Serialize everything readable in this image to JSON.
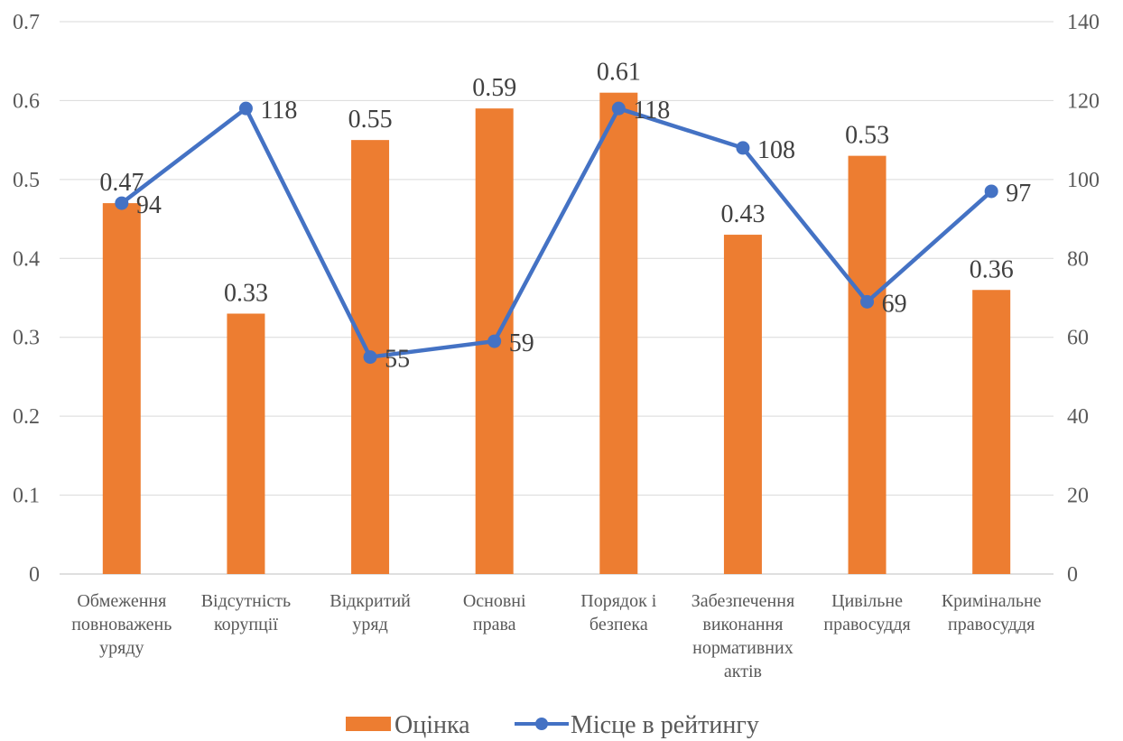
{
  "chart_data": {
    "type": "bar",
    "categories": [
      [
        "Обмеження",
        "повноважень",
        "уряду"
      ],
      [
        "Відсутність",
        "корупції"
      ],
      [
        "Відкритий",
        "уряд"
      ],
      [
        "Основні",
        "права"
      ],
      [
        "Порядок і",
        "безпека"
      ],
      [
        "Забезпечення",
        "виконання",
        "нормативних",
        "актів"
      ],
      [
        "Цивільне",
        "правосуддя"
      ],
      [
        "Кримінальне",
        "правосуддя"
      ]
    ],
    "series": [
      {
        "name": "Оцінка",
        "type": "bar",
        "axis": "left",
        "color": "#ED7D31",
        "values": [
          0.47,
          0.33,
          0.55,
          0.59,
          0.61,
          0.43,
          0.53,
          0.36
        ],
        "labels": [
          "0.47",
          "0.33",
          "0.55",
          "0.59",
          "0.61",
          "0.43",
          "0.53",
          "0.36"
        ]
      },
      {
        "name": "Місце в рейтингу",
        "type": "line",
        "axis": "right",
        "color": "#4472C4",
        "values": [
          94,
          118,
          55,
          59,
          118,
          108,
          69,
          97
        ],
        "labels": [
          "94",
          "118",
          "55",
          "59",
          "118",
          "108",
          "69",
          "97"
        ]
      }
    ],
    "y_left": {
      "min": 0,
      "max": 0.7,
      "ticks": [
        "0",
        "0.1",
        "0.2",
        "0.3",
        "0.4",
        "0.5",
        "0.6",
        "0.7"
      ]
    },
    "y_right": {
      "min": 0,
      "max": 140,
      "ticks": [
        "0",
        "20",
        "40",
        "60",
        "80",
        "100",
        "120",
        "140"
      ]
    },
    "grid": true,
    "legend": "bottom"
  }
}
